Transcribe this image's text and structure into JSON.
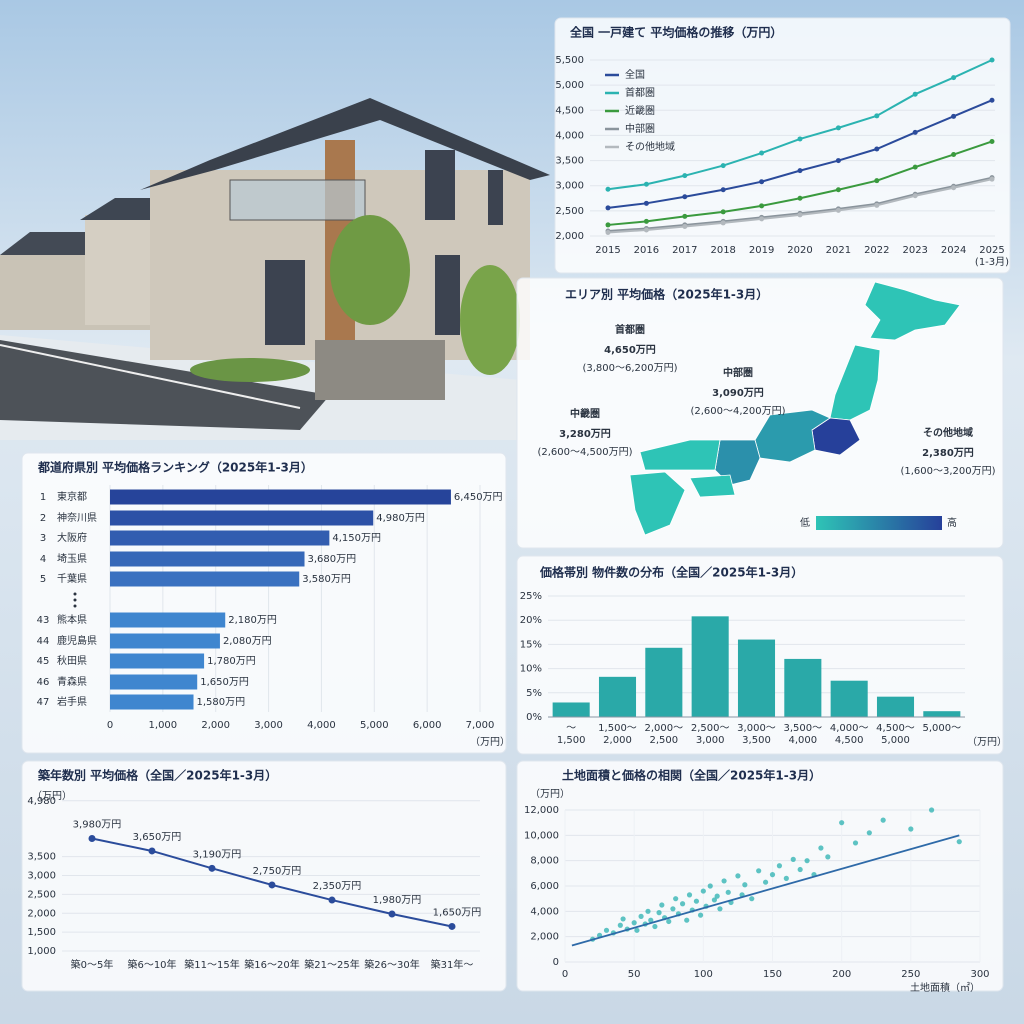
{
  "chart_data": [
    {
      "type": "line",
      "title": "全国 一戸建て 平均価格の推移（万円）",
      "categories": [
        "2015",
        "2016",
        "2017",
        "2018",
        "2019",
        "2020",
        "2021",
        "2022",
        "2023",
        "2024",
        "2025(1-3月)"
      ],
      "series": [
        {
          "name": "全国",
          "color": "#2b4b9b",
          "values": [
            2560,
            2650,
            2780,
            2920,
            3080,
            3300,
            3500,
            3730,
            4060,
            4380,
            4700
          ]
        },
        {
          "name": "首都圏",
          "color": "#2bb3b1",
          "values": [
            2930,
            3030,
            3200,
            3400,
            3650,
            3930,
            4150,
            4390,
            4820,
            5150,
            5500
          ]
        },
        {
          "name": "近畿圏",
          "color": "#3a9a3e",
          "values": [
            2220,
            2290,
            2390,
            2480,
            2600,
            2750,
            2920,
            3100,
            3370,
            3620,
            3880
          ]
        },
        {
          "name": "中部圏",
          "color": "#8a949c",
          "values": [
            2100,
            2150,
            2220,
            2290,
            2370,
            2450,
            2540,
            2640,
            2830,
            2990,
            3160
          ]
        },
        {
          "name": "その他地域",
          "color": "#b3b9be",
          "values": [
            2070,
            2120,
            2190,
            2260,
            2340,
            2420,
            2510,
            2610,
            2800,
            2960,
            3130
          ]
        }
      ],
      "ylim": [
        2000,
        5500
      ],
      "yticks": [
        {
          "value": 2000,
          "label": "2,000"
        },
        {
          "value": 2500,
          "label": "2,500"
        },
        {
          "value": 3000,
          "label": "3,000"
        },
        {
          "value": 3500,
          "label": "3,500"
        },
        {
          "value": 4000,
          "label": "4,000"
        },
        {
          "value": 4500,
          "label": "4,500"
        },
        {
          "value": 5000,
          "label": "5,000"
        },
        {
          "value": 5500,
          "label": "5,500"
        }
      ],
      "grid": true,
      "legend": "upper left"
    },
    {
      "type": "map",
      "title": "エリア別 平均価格（2025年1-3月）",
      "categories": [
        "首都圏",
        "中部圏",
        "中畿圏",
        "その他地域"
      ],
      "values": [
        4650,
        3090,
        3280,
        2380
      ],
      "value_labels": [
        "4,650万円",
        "3,090万円",
        "3,280万円",
        "2,380万円"
      ],
      "range_labels": [
        "(3,800～6,200万円)",
        "(2,600～4,200万円)",
        "(2,600～4,500万円)",
        "(1,600～3,200万円)"
      ],
      "legend_low": "低",
      "legend_high": "高",
      "colors": [
        "#2ec4b6",
        "#26409a"
      ]
    },
    {
      "type": "barh",
      "title": "都道府県別 平均価格ランキング（2025年1-3月）",
      "ranks": [
        1,
        2,
        3,
        4,
        5,
        43,
        44,
        45,
        46,
        47
      ],
      "categories": [
        "東京都",
        "神奈川県",
        "大阪府",
        "埼玉県",
        "千葉県",
        "熊本県",
        "鹿児島県",
        "秋田県",
        "青森県",
        "岩手県"
      ],
      "values": [
        6450,
        4980,
        4150,
        3680,
        3580,
        2180,
        2080,
        1780,
        1650,
        1580
      ],
      "value_labels": [
        "6,450万円",
        "4,980万円",
        "4,150万円",
        "3,680万円",
        "3,580万円",
        "2,180万円",
        "2,080万円",
        "1,780万円",
        "1,650万円",
        "1,580万円"
      ],
      "colors": [
        "#26449a",
        "#2c51a6",
        "#325db0",
        "#3668b8",
        "#3a71c0",
        "#3f86cf",
        "#3f86cf",
        "#3f86cf",
        "#3f86cf",
        "#3f86cf"
      ],
      "xlim": [
        0,
        7000
      ],
      "xticks": [
        0,
        {
          "value": 1000,
          "label": "1,000"
        },
        {
          "value": 2000,
          "label": "2,000"
        },
        {
          "value": 3000,
          "label": "3,000"
        },
        {
          "value": 4000,
          "label": "4,000"
        },
        {
          "value": 5000,
          "label": "5,000"
        },
        {
          "value": 6000,
          "label": "6,000"
        },
        {
          "value": 7000,
          "label": "7,000"
        }
      ],
      "x_unit": "（万円）",
      "grid": true
    },
    {
      "type": "bar",
      "title": "価格帯別 物件数の分布（全国／2025年1-3月）",
      "categories": [
        "～1,500",
        "1,500～2,000",
        "2,000～2,500",
        "2,500～3,000",
        "3,000～3,500",
        "3,500～4,000",
        "4,000～4,500",
        "4,500～5,000",
        "5,000～"
      ],
      "values": [
        3,
        8.3,
        14.3,
        20.8,
        16,
        12,
        7.5,
        4.2,
        1.2
      ],
      "color": "#2aa9a8",
      "ylim": [
        0,
        25
      ],
      "yticks": [
        {
          "value": 0,
          "label": "0%"
        },
        {
          "value": 5,
          "label": "5%"
        },
        {
          "value": 10,
          "label": "10%"
        },
        {
          "value": 15,
          "label": "15%"
        },
        {
          "value": 20,
          "label": "20%"
        },
        {
          "value": 25,
          "label": "25%"
        }
      ],
      "x_unit": "（万円）",
      "grid": true
    },
    {
      "type": "line",
      "title": "築年数別 平均価格（全国／2025年1-3月）",
      "categories": [
        "築0～5年",
        "築6～10年",
        "築11～15年",
        "築16～20年",
        "築21～25年",
        "築26～30年",
        "築31年～"
      ],
      "values": [
        3980,
        3650,
        3190,
        2750,
        2350,
        1980,
        1650
      ],
      "value_labels": [
        "3,980万円",
        "3,650万円",
        "3,190万円",
        "2,750万円",
        "2,350万円",
        "1,980万円",
        "1,650万円"
      ],
      "color": "#2b4c9b",
      "ylim": [
        1000,
        5000
      ],
      "yticks": [
        {
          "value": 1000,
          "label": "1,000"
        },
        {
          "value": 1500,
          "label": "1,500"
        },
        {
          "value": 2000,
          "label": "2,000"
        },
        {
          "value": 2500,
          "label": "2,500"
        },
        {
          "value": 3000,
          "label": "3,000"
        },
        {
          "value": 3500,
          "label": "3,500"
        },
        {
          "value": 4980,
          "label": "4,980"
        }
      ],
      "y_unit": "（万円）",
      "grid": true
    },
    {
      "type": "scatter",
      "title": "土地面積と価格の相関（全国／2025年1-3月）",
      "x": [
        20,
        25,
        30,
        35,
        40,
        42,
        45,
        50,
        52,
        55,
        58,
        60,
        62,
        65,
        68,
        70,
        72,
        75,
        78,
        80,
        82,
        85,
        88,
        90,
        92,
        95,
        98,
        100,
        102,
        105,
        108,
        110,
        112,
        115,
        118,
        120,
        125,
        128,
        130,
        135,
        140,
        145,
        150,
        155,
        160,
        165,
        170,
        175,
        180,
        185,
        190,
        200,
        210,
        220,
        230,
        250,
        265,
        285
      ],
      "values": [
        1800,
        2100,
        2500,
        2300,
        2900,
        3400,
        2600,
        3100,
        2500,
        3600,
        3000,
        4000,
        3300,
        2800,
        3900,
        4500,
        3500,
        3200,
        4200,
        5000,
        3800,
        4600,
        3300,
        5300,
        4100,
        4800,
        3700,
        5600,
        4400,
        6000,
        4900,
        5200,
        4200,
        6400,
        5500,
        4700,
        6800,
        5300,
        6100,
        5000,
        7200,
        6300,
        6900,
        7600,
        6600,
        8100,
        7300,
        8000,
        6900,
        9000,
        8300,
        11000,
        9400,
        10200,
        11200,
        10500,
        12000,
        9500
      ],
      "color": "#2ab0b0",
      "trend_x": [
        5,
        285
      ],
      "trend_values": [
        1300,
        10000
      ],
      "trend_color": "#2e6aa8",
      "xlim": [
        0,
        300
      ],
      "xticks": [
        0,
        50,
        100,
        150,
        200,
        250,
        300
      ],
      "ylim": [
        0,
        12000
      ],
      "yticks": [
        0,
        {
          "value": 2000,
          "label": "2,000"
        },
        {
          "value": 4000,
          "label": "4,000"
        },
        {
          "value": 6000,
          "label": "6,000"
        },
        {
          "value": 8000,
          "label": "8,000"
        },
        {
          "value": 10000,
          "label": "10,000"
        },
        {
          "value": 12000,
          "label": "12,000"
        }
      ],
      "x_label": "土地面積（㎡）",
      "y_unit": "（万円）",
      "grid": true
    }
  ]
}
